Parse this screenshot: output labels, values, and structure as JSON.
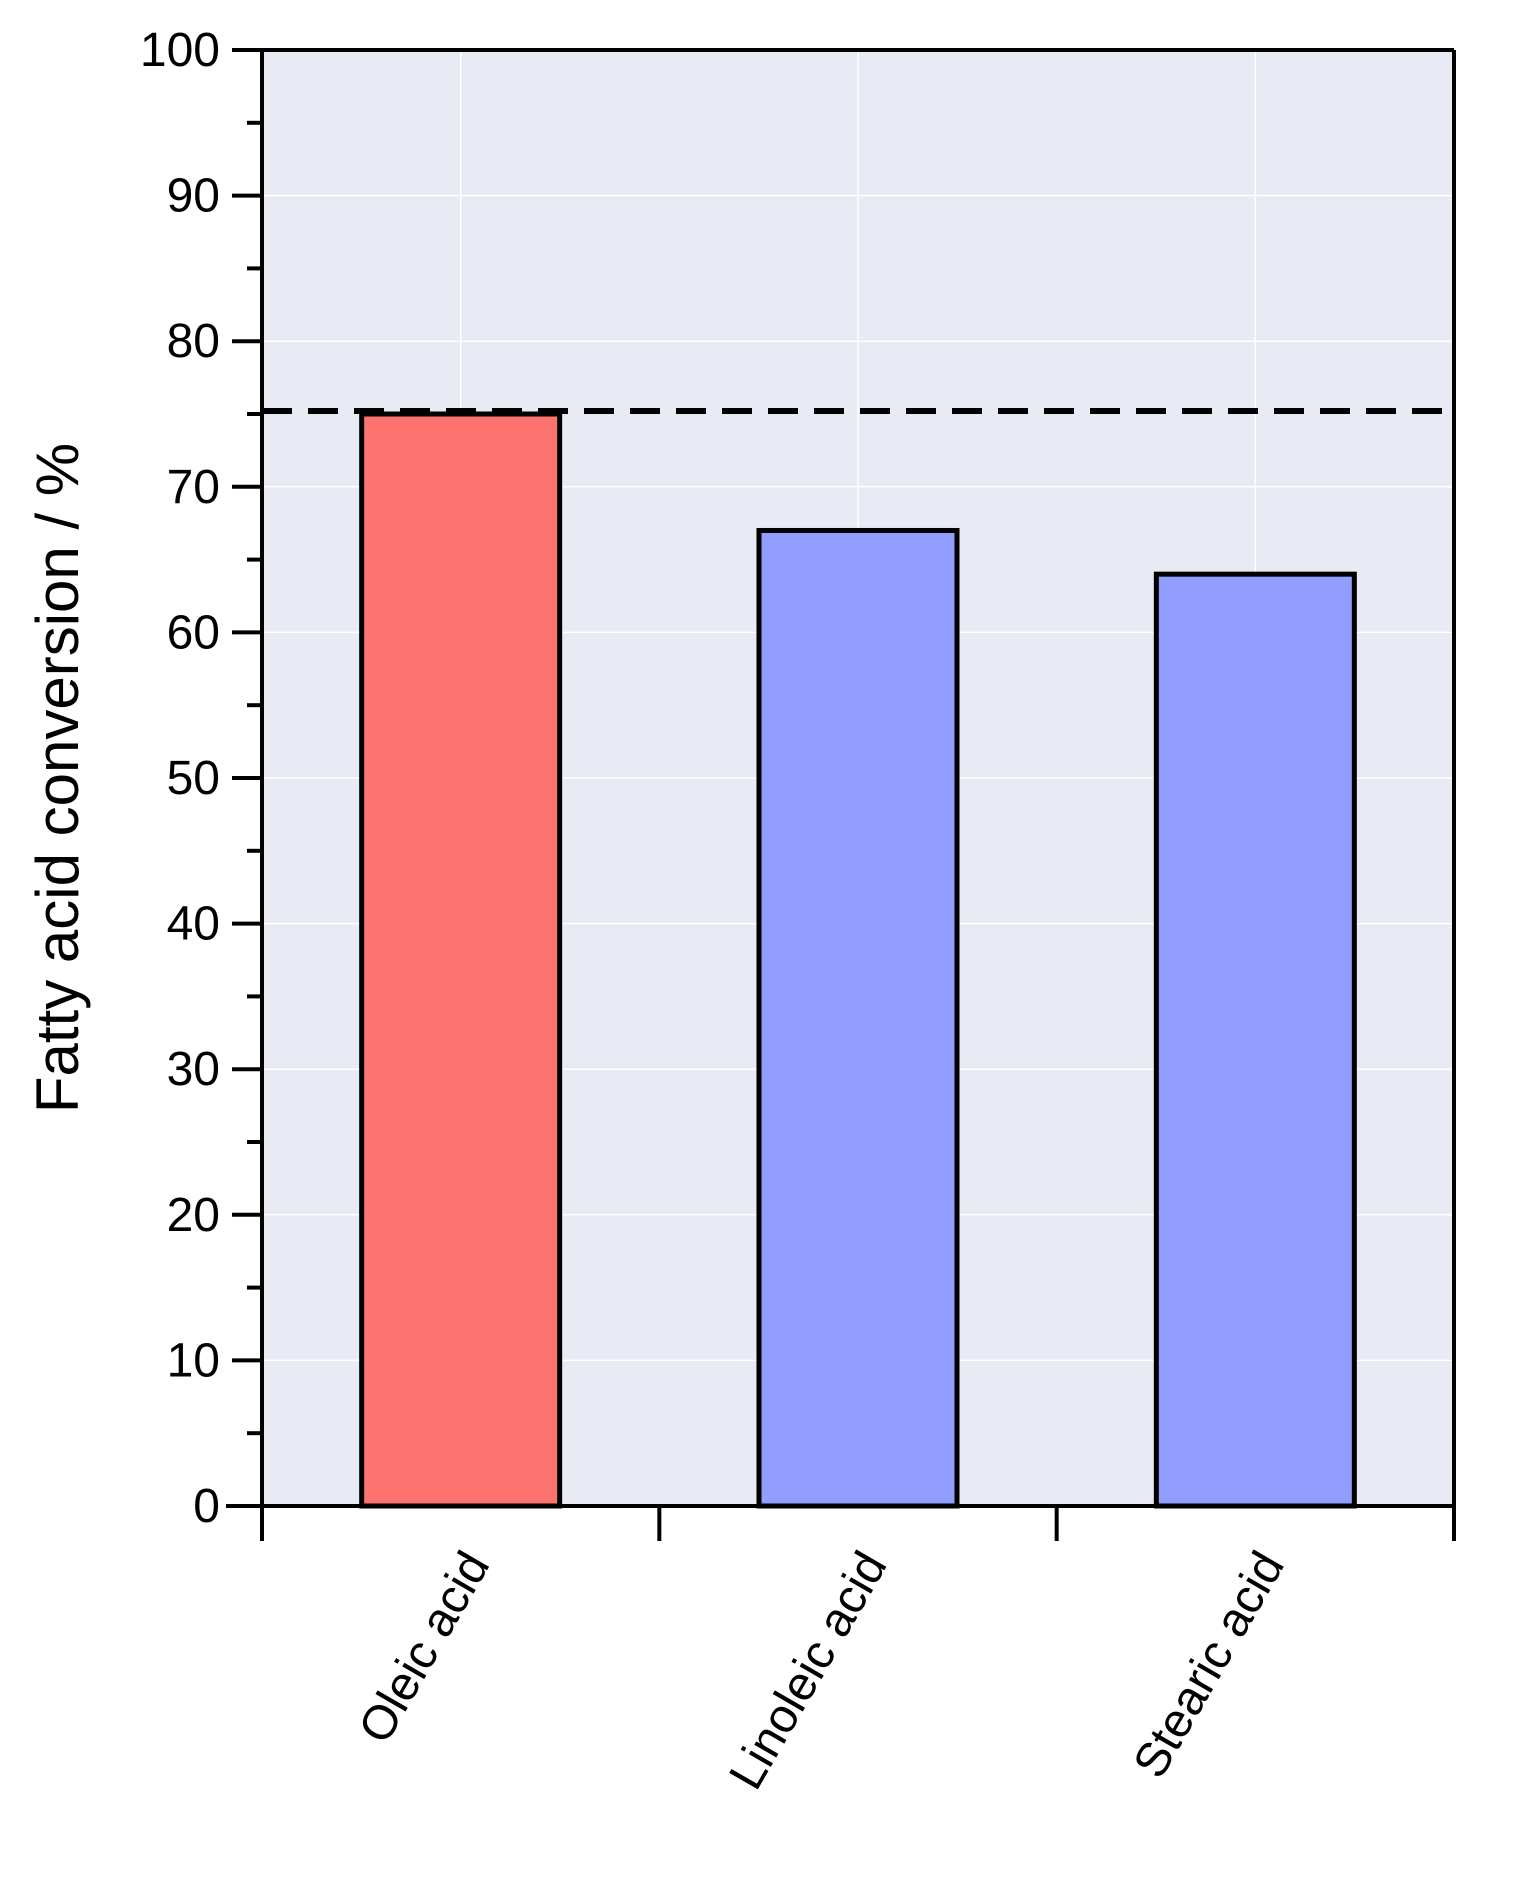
{
  "chart_data": {
    "type": "bar",
    "title": "",
    "xlabel": "",
    "ylabel": "Fatty acid conversion / %",
    "categories": [
      "Oleic acid",
      "Linoleic acid",
      "Stearic acid"
    ],
    "values": [
      75,
      67,
      64
    ],
    "bar_colors": [
      "#FC7370",
      "#919DFF",
      "#919DFF"
    ],
    "ylim": [
      0,
      100
    ],
    "yticks": [
      "0",
      "10",
      "20",
      "30",
      "40",
      "50",
      "60",
      "70",
      "80",
      "90",
      "100"
    ],
    "minor_ytick_step": 5,
    "reference_line": {
      "y": 75,
      "style": "dashed"
    },
    "grid": true,
    "legend": "none"
  },
  "colors": {
    "plot_background": "#E8EBF3",
    "grid": "#FFFFFF",
    "axis": "#000000",
    "bar_outline": "#000000"
  }
}
